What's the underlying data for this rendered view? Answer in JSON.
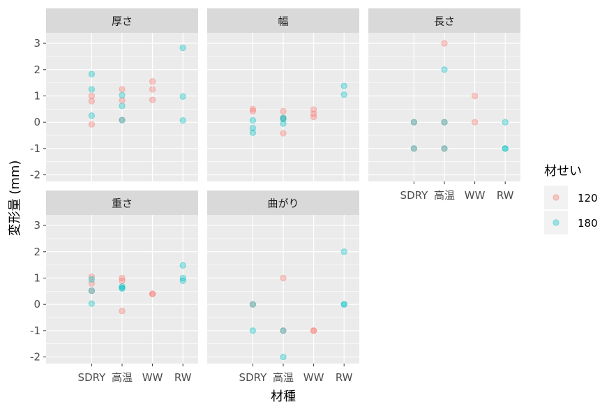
{
  "chart_data": {
    "type": "scatter",
    "xlabel": "材種",
    "ylabel": "変形量 (mm)",
    "categories": [
      "SDRY",
      "高温",
      "WW",
      "RW"
    ],
    "ylim": [
      -2.25,
      3.4
    ],
    "yticks": [
      -2,
      -1,
      0,
      1,
      2,
      3
    ],
    "ytick_labels": [
      "-2",
      "-1",
      "0",
      "1",
      "2",
      "3"
    ],
    "grid": true,
    "legend": {
      "title": "材せい",
      "position": "right",
      "items": [
        {
          "label": "120",
          "color": "#F8766D"
        },
        {
          "label": "180",
          "color": "#00BFC4"
        }
      ]
    },
    "panels": [
      {
        "title": "厚さ",
        "series": [
          {
            "name": "120",
            "points": [
              [
                "SDRY",
                1.0
              ],
              [
                "SDRY",
                0.8
              ],
              [
                "SDRY",
                -0.08
              ],
              [
                "高温",
                1.25
              ],
              [
                "高温",
                0.83
              ],
              [
                "高温",
                0.08
              ],
              [
                "WW",
                1.55
              ],
              [
                "WW",
                1.25
              ],
              [
                "WW",
                0.85
              ]
            ]
          },
          {
            "name": "180",
            "points": [
              [
                "SDRY",
                1.83
              ],
              [
                "SDRY",
                1.25
              ],
              [
                "SDRY",
                0.25
              ],
              [
                "高温",
                1.03
              ],
              [
                "高温",
                0.62
              ],
              [
                "高温",
                0.08
              ],
              [
                "RW",
                2.83
              ],
              [
                "RW",
                0.98
              ],
              [
                "RW",
                0.07
              ]
            ]
          }
        ]
      },
      {
        "title": "幅",
        "series": [
          {
            "name": "120",
            "points": [
              [
                "SDRY",
                0.5
              ],
              [
                "SDRY",
                0.42
              ],
              [
                "高温",
                0.42
              ],
              [
                "高温",
                0.15
              ],
              [
                "高温",
                -0.42
              ],
              [
                "WW",
                0.48
              ],
              [
                "WW",
                0.32
              ],
              [
                "WW",
                0.2
              ]
            ]
          },
          {
            "name": "180",
            "points": [
              [
                "SDRY",
                0.07
              ],
              [
                "SDRY",
                -0.22
              ],
              [
                "SDRY",
                -0.4
              ],
              [
                "高温",
                0.17
              ],
              [
                "高温",
                0.12
              ],
              [
                "高温",
                -0.05
              ],
              [
                "RW",
                1.38
              ],
              [
                "RW",
                1.05
              ]
            ]
          }
        ]
      },
      {
        "title": "長さ",
        "series": [
          {
            "name": "120",
            "points": [
              [
                "SDRY",
                0
              ],
              [
                "SDRY",
                -1
              ],
              [
                "高温",
                3
              ],
              [
                "高温",
                0
              ],
              [
                "高温",
                -1
              ],
              [
                "WW",
                1
              ],
              [
                "WW",
                0
              ]
            ]
          },
          {
            "name": "180",
            "points": [
              [
                "SDRY",
                0
              ],
              [
                "SDRY",
                -1
              ],
              [
                "高温",
                2
              ],
              [
                "高温",
                0
              ],
              [
                "高温",
                -1
              ],
              [
                "RW",
                0
              ],
              [
                "RW",
                -1
              ],
              [
                "RW",
                -1
              ]
            ]
          }
        ]
      },
      {
        "title": "重さ",
        "series": [
          {
            "name": "120",
            "points": [
              [
                "SDRY",
                1.05
              ],
              [
                "SDRY",
                0.8
              ],
              [
                "SDRY",
                0.52
              ],
              [
                "高温",
                1.0
              ],
              [
                "高温",
                0.9
              ],
              [
                "高温",
                -0.25
              ],
              [
                "WW",
                0.4
              ],
              [
                "WW",
                0.4
              ]
            ]
          },
          {
            "name": "180",
            "points": [
              [
                "SDRY",
                0.95
              ],
              [
                "SDRY",
                0.52
              ],
              [
                "SDRY",
                0.03
              ],
              [
                "高温",
                0.68
              ],
              [
                "高温",
                0.63
              ],
              [
                "高温",
                0.6
              ],
              [
                "RW",
                1.48
              ],
              [
                "RW",
                1.0
              ],
              [
                "RW",
                0.9
              ]
            ]
          }
        ]
      },
      {
        "title": "曲がり",
        "series": [
          {
            "name": "120",
            "points": [
              [
                "SDRY",
                0
              ],
              [
                "高温",
                1
              ],
              [
                "高温",
                -1
              ],
              [
                "WW",
                -1
              ],
              [
                "WW",
                -1
              ]
            ]
          },
          {
            "name": "180",
            "points": [
              [
                "SDRY",
                0
              ],
              [
                "SDRY",
                -1
              ],
              [
                "高温",
                -1
              ],
              [
                "高温",
                -2
              ],
              [
                "RW",
                2
              ],
              [
                "RW",
                0
              ],
              [
                "RW",
                0
              ]
            ]
          }
        ]
      }
    ]
  },
  "colors": {
    "panel_bg": "#EBEBEB",
    "strip_bg": "#D9D9D9",
    "grid": "#FFFFFF",
    "tick": "#333333"
  }
}
